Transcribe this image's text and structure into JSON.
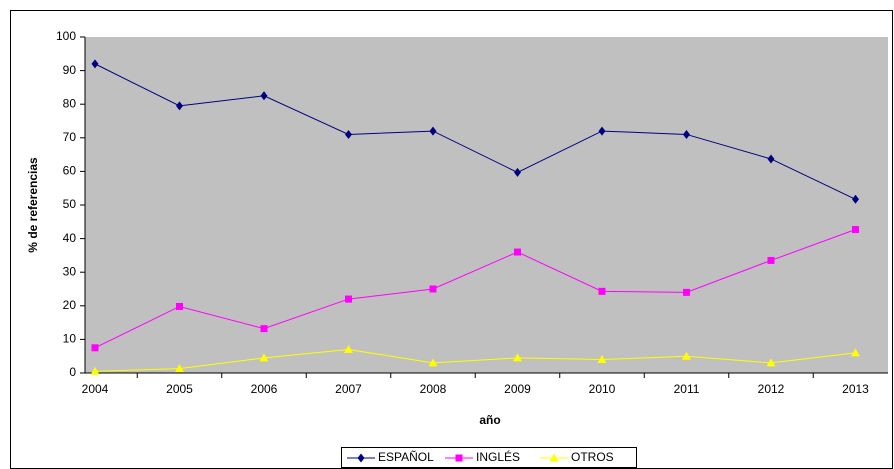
{
  "chart_data": {
    "type": "line",
    "categories": [
      "2004",
      "2005",
      "2006",
      "2007",
      "2008",
      "2009",
      "2010",
      "2011",
      "2012",
      "2013"
    ],
    "series": [
      {
        "name": "ESPAÑOL",
        "color": "#000080",
        "marker": "diamond",
        "values": [
          92,
          79.5,
          82.5,
          71,
          72,
          59.7,
          72,
          71,
          63.7,
          51.7
        ]
      },
      {
        "name": "INGLÉS",
        "color": "#FF00FF",
        "marker": "square",
        "values": [
          7.5,
          19.8,
          13.2,
          22,
          25,
          36,
          24.3,
          24,
          33.5,
          42.7
        ]
      },
      {
        "name": "OTROS",
        "color": "#FFFF00",
        "marker": "triangle",
        "values": [
          0.5,
          1.3,
          4.5,
          7,
          3,
          4.5,
          4,
          5,
          3,
          6
        ]
      }
    ],
    "xlabel": "año",
    "ylabel": "% de referencias",
    "ylim": [
      0,
      100
    ],
    "yticks": [
      0,
      10,
      20,
      30,
      40,
      50,
      60,
      70,
      80,
      90,
      100
    ],
    "legend": "bottom"
  }
}
